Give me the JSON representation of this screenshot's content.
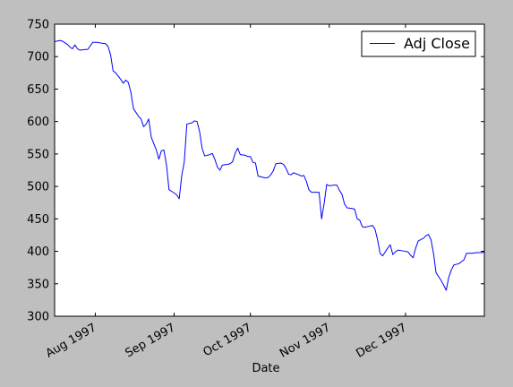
{
  "chart_data": {
    "type": "line",
    "title": "",
    "xlabel": "Date",
    "ylabel": "",
    "x_range": [
      "1997-07-16",
      "1998-01-01"
    ],
    "ylim": [
      300,
      750
    ],
    "y_ticks": [
      300,
      350,
      400,
      450,
      500,
      550,
      600,
      650,
      700,
      750
    ],
    "x_ticks": [
      {
        "date": "1997-08-01",
        "label": "Aug 1997"
      },
      {
        "date": "1997-09-01",
        "label": "Sep 1997"
      },
      {
        "date": "1997-10-01",
        "label": "Oct 1997"
      },
      {
        "date": "1997-11-01",
        "label": "Nov 1997"
      },
      {
        "date": "1997-12-01",
        "label": "Dec 1997"
      }
    ],
    "grid": false,
    "legend_position": "top-right",
    "background_color": "#ffffff",
    "series": [
      {
        "name": "Adj Close",
        "color": "#0000ff",
        "points": [
          [
            "1997-07-16",
            723
          ],
          [
            "1997-07-17",
            724
          ],
          [
            "1997-07-18",
            725
          ],
          [
            "1997-07-19",
            724
          ],
          [
            "1997-07-21",
            719
          ],
          [
            "1997-07-22",
            715
          ],
          [
            "1997-07-23",
            712
          ],
          [
            "1997-07-24",
            718
          ],
          [
            "1997-07-25",
            712
          ],
          [
            "1997-07-26",
            710
          ],
          [
            "1997-07-28",
            711
          ],
          [
            "1997-07-29",
            711
          ],
          [
            "1997-07-31",
            722
          ],
          [
            "1997-08-01",
            722
          ],
          [
            "1997-08-02",
            722
          ],
          [
            "1997-08-03",
            721
          ],
          [
            "1997-08-05",
            720
          ],
          [
            "1997-08-06",
            716
          ],
          [
            "1997-08-07",
            703
          ],
          [
            "1997-08-08",
            678
          ],
          [
            "1997-08-09",
            675
          ],
          [
            "1997-08-11",
            665
          ],
          [
            "1997-08-12",
            659
          ],
          [
            "1997-08-13",
            664
          ],
          [
            "1997-08-14",
            660
          ],
          [
            "1997-08-15",
            645
          ],
          [
            "1997-08-16",
            620
          ],
          [
            "1997-08-18",
            608
          ],
          [
            "1997-08-19",
            604
          ],
          [
            "1997-08-20",
            592
          ],
          [
            "1997-08-21",
            596
          ],
          [
            "1997-08-22",
            604
          ],
          [
            "1997-08-23",
            576
          ],
          [
            "1997-08-25",
            556
          ],
          [
            "1997-08-26",
            542
          ],
          [
            "1997-08-27",
            555
          ],
          [
            "1997-08-28",
            556
          ],
          [
            "1997-08-29",
            533
          ],
          [
            "1997-08-30",
            495
          ],
          [
            "1997-09-01",
            490
          ],
          [
            "1997-09-02",
            487
          ],
          [
            "1997-09-03",
            481
          ],
          [
            "1997-09-04",
            517
          ],
          [
            "1997-09-05",
            538
          ],
          [
            "1997-09-06",
            596
          ],
          [
            "1997-09-08",
            598
          ],
          [
            "1997-09-09",
            601
          ],
          [
            "1997-09-10",
            600
          ],
          [
            "1997-09-11",
            585
          ],
          [
            "1997-09-12",
            559
          ],
          [
            "1997-09-13",
            547
          ],
          [
            "1997-09-15",
            549
          ],
          [
            "1997-09-16",
            551
          ],
          [
            "1997-09-17",
            542
          ],
          [
            "1997-09-18",
            530
          ],
          [
            "1997-09-19",
            525
          ],
          [
            "1997-09-20",
            533
          ],
          [
            "1997-09-22",
            534
          ],
          [
            "1997-09-23",
            535
          ],
          [
            "1997-09-24",
            538
          ],
          [
            "1997-09-25",
            551
          ],
          [
            "1997-09-26",
            559
          ],
          [
            "1997-09-27",
            549
          ],
          [
            "1997-09-29",
            548
          ],
          [
            "1997-09-30",
            546
          ],
          [
            "1997-10-01",
            546
          ],
          [
            "1997-10-02",
            537
          ],
          [
            "1997-10-03",
            536
          ],
          [
            "1997-10-04",
            516
          ],
          [
            "1997-10-06",
            514
          ],
          [
            "1997-10-07",
            513
          ],
          [
            "1997-10-08",
            514
          ],
          [
            "1997-10-09",
            518
          ],
          [
            "1997-10-10",
            524
          ],
          [
            "1997-10-11",
            535
          ],
          [
            "1997-10-13",
            536
          ],
          [
            "1997-10-14",
            534
          ],
          [
            "1997-10-15",
            528
          ],
          [
            "1997-10-16",
            519
          ],
          [
            "1997-10-17",
            518
          ],
          [
            "1997-10-18",
            521
          ],
          [
            "1997-10-20",
            518
          ],
          [
            "1997-10-21",
            516
          ],
          [
            "1997-10-22",
            517
          ],
          [
            "1997-10-23",
            508
          ],
          [
            "1997-10-24",
            495
          ],
          [
            "1997-10-25",
            491
          ],
          [
            "1997-10-27",
            491
          ],
          [
            "1997-10-28",
            491
          ],
          [
            "1997-10-29",
            450
          ],
          [
            "1997-10-30",
            474
          ],
          [
            "1997-10-31",
            503
          ],
          [
            "1997-11-01",
            501
          ],
          [
            "1997-11-03",
            502
          ],
          [
            "1997-11-04",
            502
          ],
          [
            "1997-11-05",
            494
          ],
          [
            "1997-11-06",
            488
          ],
          [
            "1997-11-07",
            473
          ],
          [
            "1997-11-08",
            467
          ],
          [
            "1997-11-10",
            466
          ],
          [
            "1997-11-11",
            465
          ],
          [
            "1997-11-12",
            450
          ],
          [
            "1997-11-13",
            448
          ],
          [
            "1997-11-14",
            438
          ],
          [
            "1997-11-15",
            437
          ],
          [
            "1997-11-17",
            439
          ],
          [
            "1997-11-18",
            440
          ],
          [
            "1997-11-19",
            434
          ],
          [
            "1997-11-20",
            418
          ],
          [
            "1997-11-21",
            397
          ],
          [
            "1997-11-22",
            393
          ],
          [
            "1997-11-24",
            405
          ],
          [
            "1997-11-25",
            410
          ],
          [
            "1997-11-26",
            395
          ],
          [
            "1997-11-27",
            399
          ],
          [
            "1997-11-28",
            402
          ],
          [
            "1997-12-01",
            400
          ],
          [
            "1997-12-02",
            399
          ],
          [
            "1997-12-03",
            394
          ],
          [
            "1997-12-04",
            390
          ],
          [
            "1997-12-05",
            405
          ],
          [
            "1997-12-06",
            416
          ],
          [
            "1997-12-08",
            420
          ],
          [
            "1997-12-09",
            424
          ],
          [
            "1997-12-10",
            426
          ],
          [
            "1997-12-11",
            418
          ],
          [
            "1997-12-12",
            397
          ],
          [
            "1997-12-13",
            367
          ],
          [
            "1997-12-15",
            355
          ],
          [
            "1997-12-16",
            348
          ],
          [
            "1997-12-17",
            340
          ],
          [
            "1997-12-18",
            360
          ],
          [
            "1997-12-19",
            371
          ],
          [
            "1997-12-20",
            379
          ],
          [
            "1997-12-22",
            381
          ],
          [
            "1997-12-23",
            384
          ],
          [
            "1997-12-24",
            387
          ],
          [
            "1997-12-25",
            397
          ],
          [
            "1997-12-27",
            397
          ],
          [
            "1997-12-29",
            398
          ],
          [
            "1997-12-31",
            398
          ],
          [
            "1998-01-01",
            399
          ]
        ]
      }
    ]
  }
}
